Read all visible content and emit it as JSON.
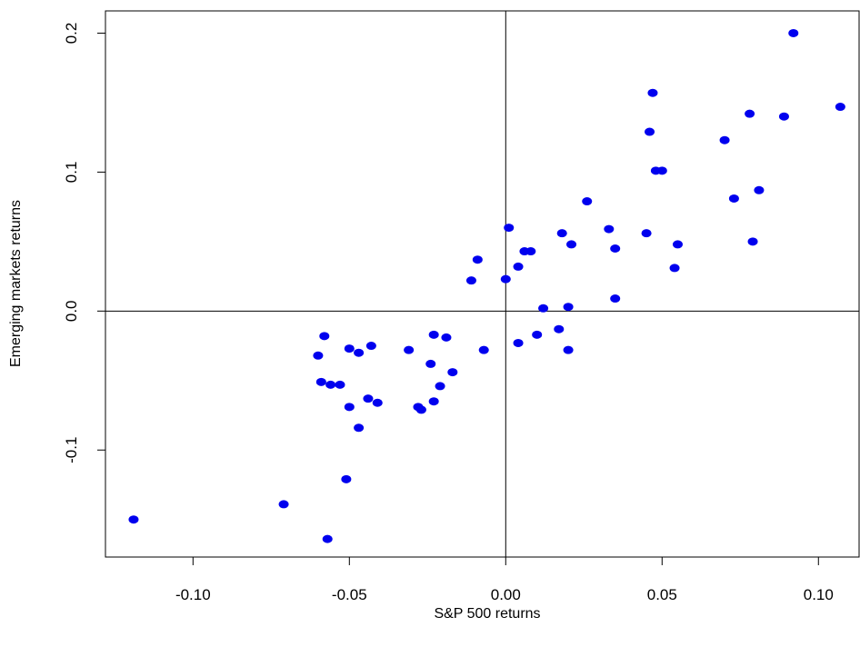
{
  "chart_data": {
    "type": "scatter",
    "title": "",
    "xlabel": "S&P 500 returns",
    "ylabel": "Emerging markets returns",
    "xlim": [
      -0.128,
      0.113
    ],
    "ylim": [
      -0.177,
      0.216
    ],
    "x_ticks": [
      -0.1,
      -0.05,
      0.0,
      0.05,
      0.1
    ],
    "x_tick_labels": [
      "-0.10",
      "-0.05",
      "0.00",
      "0.05",
      "0.10"
    ],
    "y_ticks": [
      -0.1,
      0.0,
      0.1,
      0.2
    ],
    "y_tick_labels": [
      "-0.1",
      "0.0",
      "0.1",
      "0.2"
    ],
    "reference_lines": {
      "vertical_x": 0,
      "horizontal_y": 0
    },
    "grid": false,
    "marker_color": "#0000ee",
    "points": [
      [
        -0.119,
        -0.15
      ],
      [
        -0.071,
        -0.139
      ],
      [
        -0.057,
        -0.164
      ],
      [
        -0.051,
        -0.121
      ],
      [
        -0.047,
        -0.084
      ],
      [
        -0.05,
        -0.069
      ],
      [
        -0.044,
        -0.063
      ],
      [
        -0.041,
        -0.066
      ],
      [
        -0.059,
        -0.051
      ],
      [
        -0.056,
        -0.053
      ],
      [
        -0.053,
        -0.053
      ],
      [
        -0.06,
        -0.032
      ],
      [
        -0.058,
        -0.018
      ],
      [
        -0.05,
        -0.027
      ],
      [
        -0.047,
        -0.03
      ],
      [
        -0.043,
        -0.025
      ],
      [
        -0.031,
        -0.028
      ],
      [
        -0.028,
        -0.069
      ],
      [
        -0.027,
        -0.071
      ],
      [
        -0.023,
        -0.065
      ],
      [
        -0.021,
        -0.054
      ],
      [
        -0.024,
        -0.038
      ],
      [
        -0.017,
        -0.044
      ],
      [
        -0.023,
        -0.017
      ],
      [
        -0.019,
        -0.019
      ],
      [
        -0.007,
        -0.028
      ],
      [
        -0.009,
        0.037
      ],
      [
        -0.011,
        0.022
      ],
      [
        0.0,
        0.023
      ],
      [
        0.001,
        0.06
      ],
      [
        0.004,
        0.032
      ],
      [
        0.004,
        -0.023
      ],
      [
        0.006,
        0.043
      ],
      [
        0.008,
        0.043
      ],
      [
        0.01,
        -0.017
      ],
      [
        0.012,
        0.002
      ],
      [
        0.017,
        -0.013
      ],
      [
        0.018,
        0.056
      ],
      [
        0.021,
        0.048
      ],
      [
        0.02,
        0.003
      ],
      [
        0.02,
        -0.028
      ],
      [
        0.026,
        0.079
      ],
      [
        0.033,
        0.059
      ],
      [
        0.035,
        0.045
      ],
      [
        0.035,
        0.009
      ],
      [
        0.045,
        0.056
      ],
      [
        0.046,
        0.129
      ],
      [
        0.047,
        0.157
      ],
      [
        0.048,
        0.101
      ],
      [
        0.05,
        0.101
      ],
      [
        0.055,
        0.048
      ],
      [
        0.054,
        0.031
      ],
      [
        0.07,
        0.123
      ],
      [
        0.073,
        0.081
      ],
      [
        0.078,
        0.142
      ],
      [
        0.079,
        0.05
      ],
      [
        0.081,
        0.087
      ],
      [
        0.089,
        0.14
      ],
      [
        0.092,
        0.2
      ],
      [
        0.107,
        0.147
      ]
    ]
  }
}
